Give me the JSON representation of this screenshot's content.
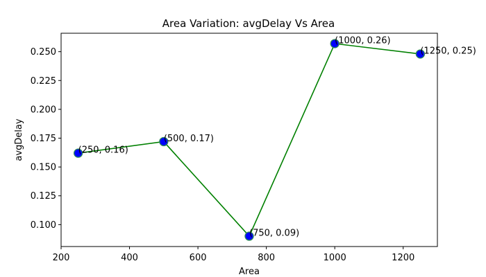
{
  "chart_data": {
    "type": "line",
    "title": "Area Variation: avgDelay Vs Area",
    "xlabel": "Area",
    "ylabel": "avgDelay",
    "x": [
      250,
      500,
      750,
      1000,
      1250
    ],
    "y": [
      0.162,
      0.172,
      0.09,
      0.257,
      0.248
    ],
    "point_labels": [
      "(250, 0.16)",
      "(500, 0.17)",
      "(750, 0.09)",
      "(1000, 0.26)",
      "(1250, 0.25)"
    ],
    "xlim": [
      200,
      1300
    ],
    "ylim": [
      0.081,
      0.266
    ],
    "xticks": [
      200,
      400,
      600,
      800,
      1000,
      1200
    ],
    "xtick_labels": [
      "200",
      "400",
      "600",
      "800",
      "1000",
      "1200"
    ],
    "yticks": [
      0.1,
      0.125,
      0.15,
      0.175,
      0.2,
      0.225,
      0.25
    ],
    "ytick_labels": [
      "0.100",
      "0.125",
      "0.150",
      "0.175",
      "0.200",
      "0.225",
      "0.250"
    ],
    "grid": false,
    "line_color": "#008000",
    "marker_color": "#0000ff",
    "marker_edge_color": "#2e8b57"
  }
}
